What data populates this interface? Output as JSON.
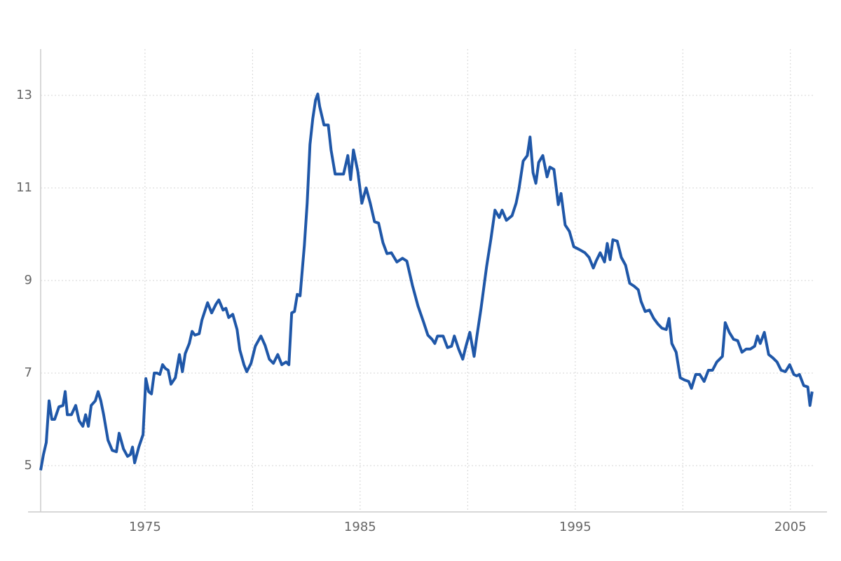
{
  "chart_data": {
    "type": "line",
    "x": [
      1970.15,
      1970.28,
      1970.41,
      1970.54,
      1970.67,
      1970.8,
      1971.0,
      1971.19,
      1971.29,
      1971.39,
      1971.58,
      1971.78,
      1971.94,
      1972.11,
      1972.24,
      1972.37,
      1972.5,
      1972.69,
      1972.82,
      1972.95,
      1973.08,
      1973.28,
      1973.48,
      1973.67,
      1973.8,
      1974.0,
      1974.19,
      1974.32,
      1974.42,
      1974.52,
      1974.71,
      1974.91,
      1975.04,
      1975.17,
      1975.3,
      1975.43,
      1975.56,
      1975.69,
      1975.82,
      1975.95,
      1976.08,
      1976.21,
      1976.41,
      1976.6,
      1976.74,
      1976.87,
      1977.06,
      1977.19,
      1977.32,
      1977.52,
      1977.65,
      1977.91,
      1978.1,
      1978.3,
      1978.43,
      1978.63,
      1978.76,
      1978.89,
      1979.08,
      1979.28,
      1979.41,
      1979.6,
      1979.73,
      1979.93,
      1980.13,
      1980.39,
      1980.58,
      1980.78,
      1980.97,
      1981.17,
      1981.36,
      1981.56,
      1981.69,
      1981.82,
      1981.95,
      1982.08,
      1982.21,
      1982.41,
      1982.54,
      1982.67,
      1982.8,
      1982.93,
      1983.03,
      1983.12,
      1983.32,
      1983.52,
      1983.65,
      1983.84,
      1984.23,
      1984.43,
      1984.56,
      1984.69,
      1984.89,
      1985.08,
      1985.28,
      1985.47,
      1985.67,
      1985.86,
      1986.06,
      1986.25,
      1986.45,
      1986.71,
      1986.97,
      1987.17,
      1987.43,
      1987.69,
      1987.95,
      1988.15,
      1988.34,
      1988.47,
      1988.6,
      1988.86,
      1989.06,
      1989.25,
      1989.38,
      1989.58,
      1989.77,
      1989.9,
      1990.1,
      1990.3,
      1990.43,
      1990.62,
      1990.88,
      1991.08,
      1991.27,
      1991.47,
      1991.6,
      1991.8,
      1992.06,
      1992.25,
      1992.38,
      1992.58,
      1992.77,
      1992.9,
      1993.04,
      1993.17,
      1993.3,
      1993.49,
      1993.69,
      1993.82,
      1994.01,
      1994.21,
      1994.34,
      1994.53,
      1994.73,
      1994.93,
      1995.19,
      1995.45,
      1995.64,
      1995.84,
      1995.97,
      1996.16,
      1996.36,
      1996.49,
      1996.62,
      1996.75,
      1996.95,
      1997.14,
      1997.34,
      1997.53,
      1997.73,
      1997.93,
      1998.06,
      1998.25,
      1998.45,
      1998.65,
      1998.84,
      1999.03,
      1999.23,
      1999.36,
      1999.49,
      1999.69,
      1999.88,
      2000.08,
      2000.27,
      2000.4,
      2000.6,
      2000.79,
      2000.99,
      2001.19,
      2001.38,
      2001.58,
      2001.84,
      2001.97,
      2002.16,
      2002.36,
      2002.55,
      2002.75,
      2002.95,
      2003.14,
      2003.34,
      2003.47,
      2003.6,
      2003.79,
      2003.99,
      2004.18,
      2004.38,
      2004.57,
      2004.77,
      2004.97,
      2005.16,
      2005.29,
      2005.42,
      2005.62,
      2005.81,
      2005.91,
      2006.01
    ],
    "series": [
      {
        "color": "#1f57a8",
        "values": [
          4.9,
          5.24,
          5.5,
          6.4,
          6.0,
          6.0,
          6.27,
          6.3,
          6.6,
          6.1,
          6.1,
          6.3,
          5.97,
          5.85,
          6.1,
          5.85,
          6.3,
          6.4,
          6.6,
          6.4,
          6.1,
          5.55,
          5.33,
          5.3,
          5.7,
          5.36,
          5.2,
          5.24,
          5.4,
          5.06,
          5.4,
          5.67,
          6.88,
          6.6,
          6.55,
          7.0,
          7.0,
          6.97,
          7.18,
          7.1,
          7.06,
          6.76,
          6.9,
          7.4,
          7.03,
          7.42,
          7.64,
          7.9,
          7.82,
          7.85,
          8.15,
          8.52,
          8.3,
          8.49,
          8.58,
          8.36,
          8.4,
          8.2,
          8.27,
          7.94,
          7.5,
          7.18,
          7.03,
          7.21,
          7.58,
          7.8,
          7.6,
          7.3,
          7.21,
          7.4,
          7.18,
          7.24,
          7.18,
          8.3,
          8.33,
          8.7,
          8.67,
          9.76,
          10.67,
          11.94,
          12.5,
          12.9,
          13.03,
          12.76,
          12.36,
          12.36,
          11.82,
          11.3,
          11.3,
          11.7,
          11.18,
          11.82,
          11.36,
          10.67,
          11.0,
          10.67,
          10.27,
          10.24,
          9.82,
          9.58,
          9.6,
          9.4,
          9.48,
          9.42,
          8.9,
          8.45,
          8.1,
          7.82,
          7.73,
          7.64,
          7.8,
          7.8,
          7.55,
          7.58,
          7.8,
          7.52,
          7.3,
          7.55,
          7.88,
          7.36,
          7.8,
          8.4,
          9.3,
          9.9,
          10.52,
          10.36,
          10.52,
          10.3,
          10.4,
          10.67,
          10.97,
          11.58,
          11.7,
          12.1,
          11.33,
          11.1,
          11.55,
          11.7,
          11.24,
          11.45,
          11.4,
          10.64,
          10.88,
          10.2,
          10.06,
          9.73,
          9.67,
          9.6,
          9.5,
          9.27,
          9.42,
          9.6,
          9.4,
          9.8,
          9.45,
          9.88,
          9.85,
          9.5,
          9.33,
          8.94,
          8.88,
          8.8,
          8.55,
          8.33,
          8.36,
          8.18,
          8.06,
          7.97,
          7.94,
          8.18,
          7.64,
          7.45,
          6.9,
          6.85,
          6.82,
          6.67,
          6.97,
          6.97,
          6.82,
          7.06,
          7.06,
          7.24,
          7.36,
          8.09,
          7.88,
          7.73,
          7.7,
          7.45,
          7.52,
          7.52,
          7.58,
          7.8,
          7.64,
          7.88,
          7.4,
          7.33,
          7.24,
          7.06,
          7.03,
          7.18,
          6.97,
          6.94,
          6.97,
          6.73,
          6.7,
          6.3,
          6.6
        ]
      }
    ],
    "xlim": [
      1970.15,
      2006.05
    ],
    "ylim": [
      4,
      14
    ],
    "xticks": [
      1975,
      1985,
      1995,
      2005
    ],
    "xminorticks": [
      1980,
      1990,
      2000
    ],
    "yticks": [
      5,
      7,
      9,
      11,
      13
    ],
    "grid": true
  }
}
